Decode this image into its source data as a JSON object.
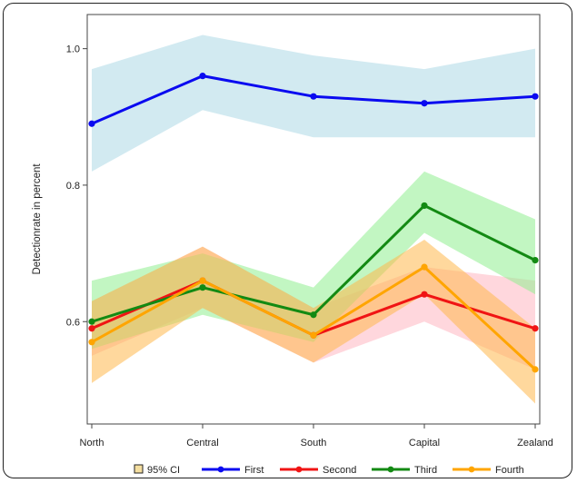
{
  "chart_data": {
    "type": "line",
    "title": "",
    "xlabel": "",
    "ylabel": "Detectionrate in percent",
    "categories": [
      "North",
      "Central",
      "South",
      "Capital",
      "Zealand"
    ],
    "ylim": [
      0.45,
      1.05
    ],
    "yticks": [
      "0.6",
      "0.8",
      "1.0"
    ],
    "ytick_values": [
      0.6,
      0.8,
      1.0
    ],
    "grid": false,
    "legend_position": "bottom",
    "ci_legend_label": "95% CI",
    "ci_legend_color": "#f5dfa0",
    "series": [
      {
        "name": "First",
        "color": "#0a0af0",
        "band_color": "#add8e6",
        "values": [
          0.89,
          0.96,
          0.93,
          0.92,
          0.93
        ],
        "lower": [
          0.82,
          0.91,
          0.87,
          0.87,
          0.87
        ],
        "upper": [
          0.97,
          1.02,
          0.99,
          0.97,
          1.0
        ]
      },
      {
        "name": "Second",
        "color": "#f01414",
        "band_color": "#ffb6c1",
        "values": [
          0.59,
          0.66,
          0.58,
          0.64,
          0.59
        ],
        "lower": [
          0.55,
          0.62,
          0.54,
          0.6,
          0.53
        ],
        "upper": [
          0.63,
          0.71,
          0.62,
          0.68,
          0.66
        ]
      },
      {
        "name": "Third",
        "color": "#138a13",
        "band_color": "#90ee90",
        "values": [
          0.6,
          0.65,
          0.61,
          0.77,
          0.69
        ],
        "lower": [
          0.56,
          0.61,
          0.57,
          0.73,
          0.64
        ],
        "upper": [
          0.66,
          0.7,
          0.65,
          0.82,
          0.75
        ]
      },
      {
        "name": "Fourth",
        "color": "#ffa500",
        "band_color": "#ffb84d",
        "values": [
          0.57,
          0.66,
          0.58,
          0.68,
          0.53
        ],
        "lower": [
          0.51,
          0.62,
          0.54,
          0.64,
          0.48
        ],
        "upper": [
          0.63,
          0.71,
          0.62,
          0.72,
          0.59
        ]
      }
    ]
  }
}
